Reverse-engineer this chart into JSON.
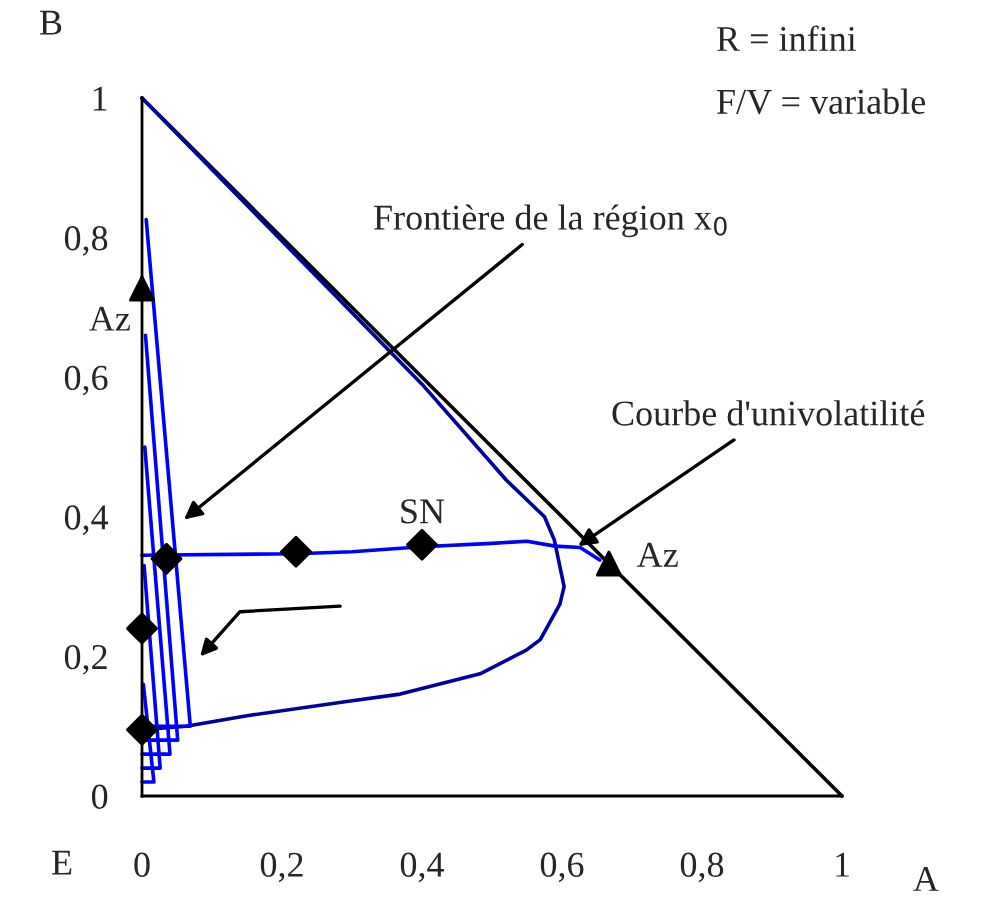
{
  "chart_data": {
    "type": "line",
    "xlabel": "A",
    "ylabel": "B",
    "xlim": [
      0,
      1
    ],
    "ylim": [
      0,
      1
    ],
    "xticks": [
      0,
      {
        "value": 0.2,
        "label": "0,2"
      },
      {
        "value": 0.4,
        "label": "0,4"
      },
      {
        "value": 0.6,
        "label": "0,6"
      },
      {
        "value": 0.8,
        "label": "0,8"
      },
      1
    ],
    "yticks": [
      0,
      {
        "value": 0.2,
        "label": "0,2"
      },
      {
        "value": 0.4,
        "label": "0,4"
      },
      {
        "value": 0.6,
        "label": "0,6"
      },
      {
        "value": 0.8,
        "label": "0,8"
      },
      1
    ],
    "grid": false,
    "legend": false,
    "series": [
      {
        "color": "#000000",
        "x": [
          0,
          1
        ],
        "values": [
          1,
          0
        ]
      },
      {
        "color": "#0000a0",
        "x": [
          0,
          0.2,
          0.4,
          0.52,
          0.575,
          0.589,
          0.603,
          0.597,
          0.569,
          0.549,
          0.483,
          0.369,
          0.29,
          0.15,
          0.063,
          0.0
        ],
        "values": [
          1,
          0.795,
          0.59,
          0.453,
          0.4,
          0.367,
          0.3,
          0.275,
          0.224,
          0.209,
          0.175,
          0.146,
          0.135,
          0.115,
          0.1,
          0.095
        ]
      },
      {
        "type": "line",
        "color": "#0000ff",
        "x": [
          0.0,
          0.22,
          0.3,
          0.4,
          0.5,
          0.55,
          0.59,
          0.626,
          0.654
        ],
        "values": [
          0.345,
          0.347,
          0.35,
          0.357,
          0.362,
          0.365,
          0.358,
          0.356,
          0.338
        ]
      },
      {
        "type": "line",
        "color": "#0000ff",
        "x": [
          0.006,
          0.069,
          0.0
        ],
        "values": [
          0.826,
          0.1,
          0.1
        ]
      },
      {
        "type": "line",
        "color": "#0000ff",
        "x": [
          0.005,
          0.051,
          0.0
        ],
        "values": [
          0.66,
          0.08,
          0.08
        ]
      },
      {
        "type": "line",
        "color": "#0000ff",
        "x": [
          0.004,
          0.04,
          0.0
        ],
        "values": [
          0.5,
          0.06,
          0.06
        ]
      },
      {
        "type": "line",
        "color": "#0000ff",
        "x": [
          0.003,
          0.026,
          0.0
        ],
        "values": [
          0.33,
          0.04,
          0.04
        ]
      },
      {
        "type": "line",
        "color": "#0000ff",
        "x": [
          0.002,
          0.017,
          0.0
        ],
        "values": [
          0.16,
          0.02,
          0.02
        ]
      },
      {
        "type": "scatter",
        "marker": "diamond",
        "color": "#000000",
        "x": [
          0,
          0,
          0.035,
          0.22,
          0.4
        ],
        "values": [
          0.24,
          0.095,
          0.34,
          0.35,
          0.36
        ]
      },
      {
        "type": "scatter",
        "marker": "triangle",
        "color": "#000000",
        "x": [
          0,
          0.667
        ],
        "values": [
          0.727,
          0.333
        ]
      }
    ],
    "annotations": [
      "R = infini",
      "F/V = variable",
      "E",
      {
        "text": "Frontière de la région x$_{0}$",
        "x": 0.06,
        "y": 0.396
      },
      {
        "text": "Courbe d'univolatilité",
        "x": 0.623,
        "y": 0.358
      },
      {
        "text": "SN",
        "x": 0.4,
        "y": 0.36
      },
      {
        "text": "Az",
        "x": 0,
        "y": 0.727
      },
      {
        "text": "Az",
        "x": 0.667,
        "y": 0.333
      }
    ]
  }
}
